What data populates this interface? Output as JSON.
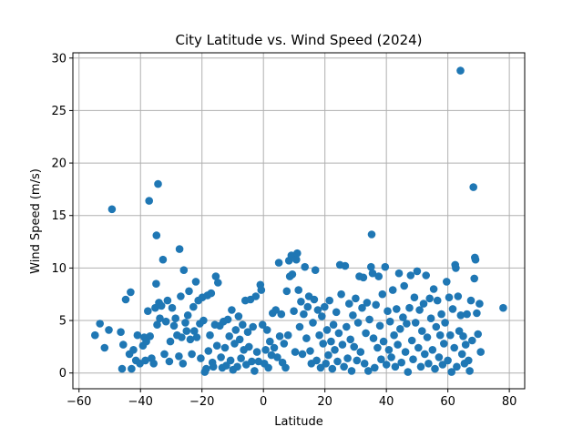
{
  "chart_data": {
    "type": "scatter",
    "title": "City Latitude vs. Wind Speed (2024)",
    "xlabel": "Latitude",
    "ylabel": "Wind Speed (m/s)",
    "xlim": [
      -62,
      85
    ],
    "ylim": [
      -1.5,
      30.5
    ],
    "xticks": [
      -60,
      -40,
      -20,
      0,
      20,
      40,
      60,
      80
    ],
    "yticks": [
      0,
      5,
      10,
      15,
      20,
      25,
      30
    ],
    "xtick_labels": [
      "−60",
      "−40",
      "−20",
      "0",
      "20",
      "40",
      "60",
      "80"
    ],
    "ytick_labels": [
      "0",
      "5",
      "10",
      "15",
      "20",
      "25",
      "30"
    ],
    "grid": true,
    "colors": {
      "marker": "#1f77b4",
      "grid": "#b0b0b0",
      "axis": "#000000"
    },
    "points": [
      [
        -54.8,
        3.6
      ],
      [
        -53.2,
        4.7
      ],
      [
        -51.7,
        2.4
      ],
      [
        -50.3,
        4.1
      ],
      [
        -49.3,
        15.6
      ],
      [
        -46.4,
        3.9
      ],
      [
        -46.0,
        0.4
      ],
      [
        -45.6,
        2.7
      ],
      [
        -44.8,
        7.0
      ],
      [
        -43.6,
        1.8
      ],
      [
        -43.2,
        7.7
      ],
      [
        -42.9,
        0.4
      ],
      [
        -42.3,
        2.2
      ],
      [
        -41.5,
        1.2
      ],
      [
        -41.0,
        3.6
      ],
      [
        -40.2,
        0.9
      ],
      [
        -39.2,
        2.6
      ],
      [
        -38.8,
        3.4
      ],
      [
        -38.4,
        1.2
      ],
      [
        -38.1,
        3.0
      ],
      [
        -37.6,
        5.9
      ],
      [
        -37.2,
        16.4
      ],
      [
        -36.9,
        3.5
      ],
      [
        -36.4,
        1.4
      ],
      [
        -35.7,
        0.9
      ],
      [
        -35.2,
        6.2
      ],
      [
        -34.9,
        8.5
      ],
      [
        -34.8,
        13.1
      ],
      [
        -34.6,
        4.6
      ],
      [
        -34.3,
        18.0
      ],
      [
        -34.0,
        6.7
      ],
      [
        -33.7,
        5.2
      ],
      [
        -33.2,
        6.4
      ],
      [
        -32.7,
        10.8
      ],
      [
        -32.2,
        1.8
      ],
      [
        -31.7,
        4.9
      ],
      [
        -31.2,
        6.9
      ],
      [
        -30.6,
        1.1
      ],
      [
        -30.3,
        3.0
      ],
      [
        -29.7,
        6.2
      ],
      [
        -29.1,
        4.5
      ],
      [
        -28.6,
        5.2
      ],
      [
        -28.1,
        3.6
      ],
      [
        -27.5,
        1.6
      ],
      [
        -27.3,
        11.8
      ],
      [
        -26.9,
        7.3
      ],
      [
        -26.6,
        3.4
      ],
      [
        -26.2,
        0.9
      ],
      [
        -25.9,
        9.8
      ],
      [
        -25.4,
        4.8
      ],
      [
        -25.0,
        4.0
      ],
      [
        -24.6,
        5.5
      ],
      [
        -24.2,
        7.8
      ],
      [
        -23.8,
        3.2
      ],
      [
        -23.3,
        1.8
      ],
      [
        -22.8,
        6.3
      ],
      [
        -22.5,
        4.0
      ],
      [
        -22.0,
        8.7
      ],
      [
        -21.7,
        3.4
      ],
      [
        -21.2,
        6.9
      ],
      [
        -20.7,
        4.7
      ],
      [
        -20.4,
        1.4
      ],
      [
        -19.9,
        7.2
      ],
      [
        -19.5,
        5.0
      ],
      [
        -19.1,
        0.1
      ],
      [
        -18.6,
        0.4
      ],
      [
        -18.2,
        7.4
      ],
      [
        -17.9,
        2.1
      ],
      [
        -17.4,
        3.6
      ],
      [
        -17.0,
        7.6
      ],
      [
        -16.6,
        1.0
      ],
      [
        -16.3,
        0.6
      ],
      [
        -15.8,
        4.6
      ],
      [
        -15.5,
        9.2
      ],
      [
        -15.1,
        2.6
      ],
      [
        -14.8,
        8.6
      ],
      [
        -14.2,
        4.5
      ],
      [
        -13.8,
        1.5
      ],
      [
        -13.4,
        0.5
      ],
      [
        -13.0,
        4.9
      ],
      [
        -12.5,
        2.4
      ],
      [
        -12.1,
        0.7
      ],
      [
        -11.6,
        5.1
      ],
      [
        -11.1,
        3.5
      ],
      [
        -10.7,
        1.2
      ],
      [
        -10.3,
        6.0
      ],
      [
        -9.9,
        0.3
      ],
      [
        -9.4,
        2.8
      ],
      [
        -9.0,
        4.1
      ],
      [
        -8.5,
        0.6
      ],
      [
        -8.1,
        5.4
      ],
      [
        -7.7,
        3.2
      ],
      [
        -7.3,
        1.4
      ],
      [
        -6.8,
        4.6
      ],
      [
        -6.4,
        2.2
      ],
      [
        -5.9,
        6.9
      ],
      [
        -5.6,
        0.8
      ],
      [
        -5.1,
        3.9
      ],
      [
        -4.7,
        2.5
      ],
      [
        -4.2,
        7.0
      ],
      [
        -3.8,
        1.1
      ],
      [
        -3.4,
        4.4
      ],
      [
        -2.9,
        0.2
      ],
      [
        -2.5,
        7.3
      ],
      [
        -2.1,
        2.0
      ],
      [
        -1.6,
        1.1
      ],
      [
        -1.0,
        8.4
      ],
      [
        -0.7,
        7.9
      ],
      [
        -0.3,
        4.6
      ],
      [
        0.3,
        0.9
      ],
      [
        0.7,
        2.2
      ],
      [
        1.2,
        4.1
      ],
      [
        1.6,
        0.5
      ],
      [
        2.1,
        3.0
      ],
      [
        2.6,
        1.7
      ],
      [
        3.0,
        5.7
      ],
      [
        3.5,
        2.4
      ],
      [
        4.0,
        6.0
      ],
      [
        4.5,
        1.5
      ],
      [
        5.0,
        10.5
      ],
      [
        5.3,
        3.5
      ],
      [
        5.8,
        5.6
      ],
      [
        6.2,
        1.0
      ],
      [
        6.7,
        2.8
      ],
      [
        7.2,
        0.5
      ],
      [
        7.6,
        7.8
      ],
      [
        8.0,
        3.6
      ],
      [
        8.3,
        10.7
      ],
      [
        8.6,
        9.2
      ],
      [
        9.1,
        11.2
      ],
      [
        9.4,
        9.4
      ],
      [
        9.9,
        5.9
      ],
      [
        10.3,
        2.0
      ],
      [
        10.7,
        10.8
      ],
      [
        11.0,
        11.4
      ],
      [
        11.4,
        7.9
      ],
      [
        11.8,
        4.4
      ],
      [
        12.2,
        6.8
      ],
      [
        12.7,
        1.8
      ],
      [
        13.1,
        5.6
      ],
      [
        13.5,
        10.1
      ],
      [
        14.0,
        3.3
      ],
      [
        14.4,
        6.3
      ],
      [
        14.8,
        7.3
      ],
      [
        15.2,
        2.1
      ],
      [
        15.6,
        0.9
      ],
      [
        16.1,
        4.8
      ],
      [
        16.5,
        7.0
      ],
      [
        16.9,
        9.8
      ],
      [
        17.3,
        1.2
      ],
      [
        17.7,
        6.0
      ],
      [
        18.2,
        3.6
      ],
      [
        18.6,
        0.5
      ],
      [
        19.0,
        5.4
      ],
      [
        19.4,
        2.8
      ],
      [
        19.9,
        6.3
      ],
      [
        20.3,
        0.9
      ],
      [
        20.7,
        4.1
      ],
      [
        21.1,
        1.7
      ],
      [
        21.5,
        6.9
      ],
      [
        22.0,
        3.0
      ],
      [
        22.4,
        0.4
      ],
      [
        22.8,
        4.6
      ],
      [
        23.2,
        2.2
      ],
      [
        23.7,
        5.8
      ],
      [
        24.1,
        1.1
      ],
      [
        24.5,
        3.8
      ],
      [
        24.9,
        10.3
      ],
      [
        25.3,
        7.5
      ],
      [
        25.7,
        2.7
      ],
      [
        26.2,
        0.6
      ],
      [
        26.6,
        10.2
      ],
      [
        27.0,
        4.4
      ],
      [
        27.4,
        1.4
      ],
      [
        27.9,
        6.6
      ],
      [
        28.3,
        3.2
      ],
      [
        28.7,
        0.2
      ],
      [
        29.1,
        5.5
      ],
      [
        29.5,
        2.5
      ],
      [
        30.0,
        7.1
      ],
      [
        30.4,
        1.2
      ],
      [
        30.8,
        4.8
      ],
      [
        31.2,
        9.2
      ],
      [
        31.6,
        2.0
      ],
      [
        32.1,
        6.2
      ],
      [
        32.5,
        9.1
      ],
      [
        32.9,
        0.9
      ],
      [
        33.3,
        3.8
      ],
      [
        33.7,
        6.7
      ],
      [
        34.1,
        0.2
      ],
      [
        34.5,
        5.1
      ],
      [
        35.0,
        10.1
      ],
      [
        35.2,
        13.2
      ],
      [
        35.5,
        9.5
      ],
      [
        35.8,
        3.3
      ],
      [
        36.2,
        0.5
      ],
      [
        36.6,
        6.5
      ],
      [
        37.1,
        2.4
      ],
      [
        37.5,
        9.2
      ],
      [
        37.9,
        4.5
      ],
      [
        38.3,
        1.3
      ],
      [
        38.7,
        7.5
      ],
      [
        39.1,
        3.0
      ],
      [
        39.6,
        10.1
      ],
      [
        40.0,
        0.8
      ],
      [
        40.4,
        5.9
      ],
      [
        40.8,
        2.2
      ],
      [
        41.2,
        4.9
      ],
      [
        41.6,
        1.5
      ],
      [
        42.1,
        7.9
      ],
      [
        42.5,
        3.6
      ],
      [
        42.9,
        0.6
      ],
      [
        43.3,
        6.1
      ],
      [
        43.7,
        2.7
      ],
      [
        44.1,
        9.5
      ],
      [
        44.5,
        4.2
      ],
      [
        44.9,
        1.0
      ],
      [
        45.4,
        5.3
      ],
      [
        45.8,
        8.3
      ],
      [
        46.2,
        2.0
      ],
      [
        46.6,
        4.7
      ],
      [
        47.0,
        0.1
      ],
      [
        47.5,
        6.2
      ],
      [
        47.9,
        9.3
      ],
      [
        48.3,
        3.1
      ],
      [
        48.7,
        1.3
      ],
      [
        49.1,
        7.2
      ],
      [
        49.5,
        4.8
      ],
      [
        50.0,
        9.7
      ],
      [
        50.4,
        2.4
      ],
      [
        50.8,
        6.0
      ],
      [
        51.2,
        0.6
      ],
      [
        51.6,
        4.0
      ],
      [
        52.1,
        6.6
      ],
      [
        52.5,
        1.8
      ],
      [
        52.9,
        9.3
      ],
      [
        53.3,
        3.4
      ],
      [
        53.7,
        0.9
      ],
      [
        54.1,
        7.1
      ],
      [
        54.5,
        5.2
      ],
      [
        55.0,
        2.2
      ],
      [
        55.4,
        8.0
      ],
      [
        55.8,
        0.4
      ],
      [
        56.2,
        4.4
      ],
      [
        56.6,
        6.9
      ],
      [
        57.1,
        1.5
      ],
      [
        57.5,
        3.6
      ],
      [
        57.9,
        5.6
      ],
      [
        58.3,
        0.8
      ],
      [
        58.7,
        2.8
      ],
      [
        59.1,
        4.8
      ],
      [
        59.6,
        8.7
      ],
      [
        60.0,
        1.2
      ],
      [
        60.4,
        7.2
      ],
      [
        60.8,
        3.6
      ],
      [
        61.2,
        0.1
      ],
      [
        61.6,
        6.1
      ],
      [
        62.1,
        2.4
      ],
      [
        62.4,
        10.3
      ],
      [
        62.6,
        10.0
      ],
      [
        62.9,
        0.6
      ],
      [
        63.3,
        7.3
      ],
      [
        63.7,
        4.0
      ],
      [
        64.1,
        28.8
      ],
      [
        64.2,
        5.5
      ],
      [
        64.6,
        1.8
      ],
      [
        65.0,
        3.5
      ],
      [
        65.4,
        0.9
      ],
      [
        65.8,
        2.7
      ],
      [
        66.2,
        5.6
      ],
      [
        66.7,
        1.2
      ],
      [
        67.1,
        0.2
      ],
      [
        67.5,
        6.9
      ],
      [
        67.9,
        3.1
      ],
      [
        68.3,
        17.7
      ],
      [
        68.6,
        9.0
      ],
      [
        68.8,
        11.0
      ],
      [
        69.0,
        10.8
      ],
      [
        69.4,
        5.7
      ],
      [
        69.8,
        3.7
      ],
      [
        70.3,
        6.6
      ],
      [
        70.7,
        2.0
      ],
      [
        78.0,
        6.2
      ]
    ]
  }
}
